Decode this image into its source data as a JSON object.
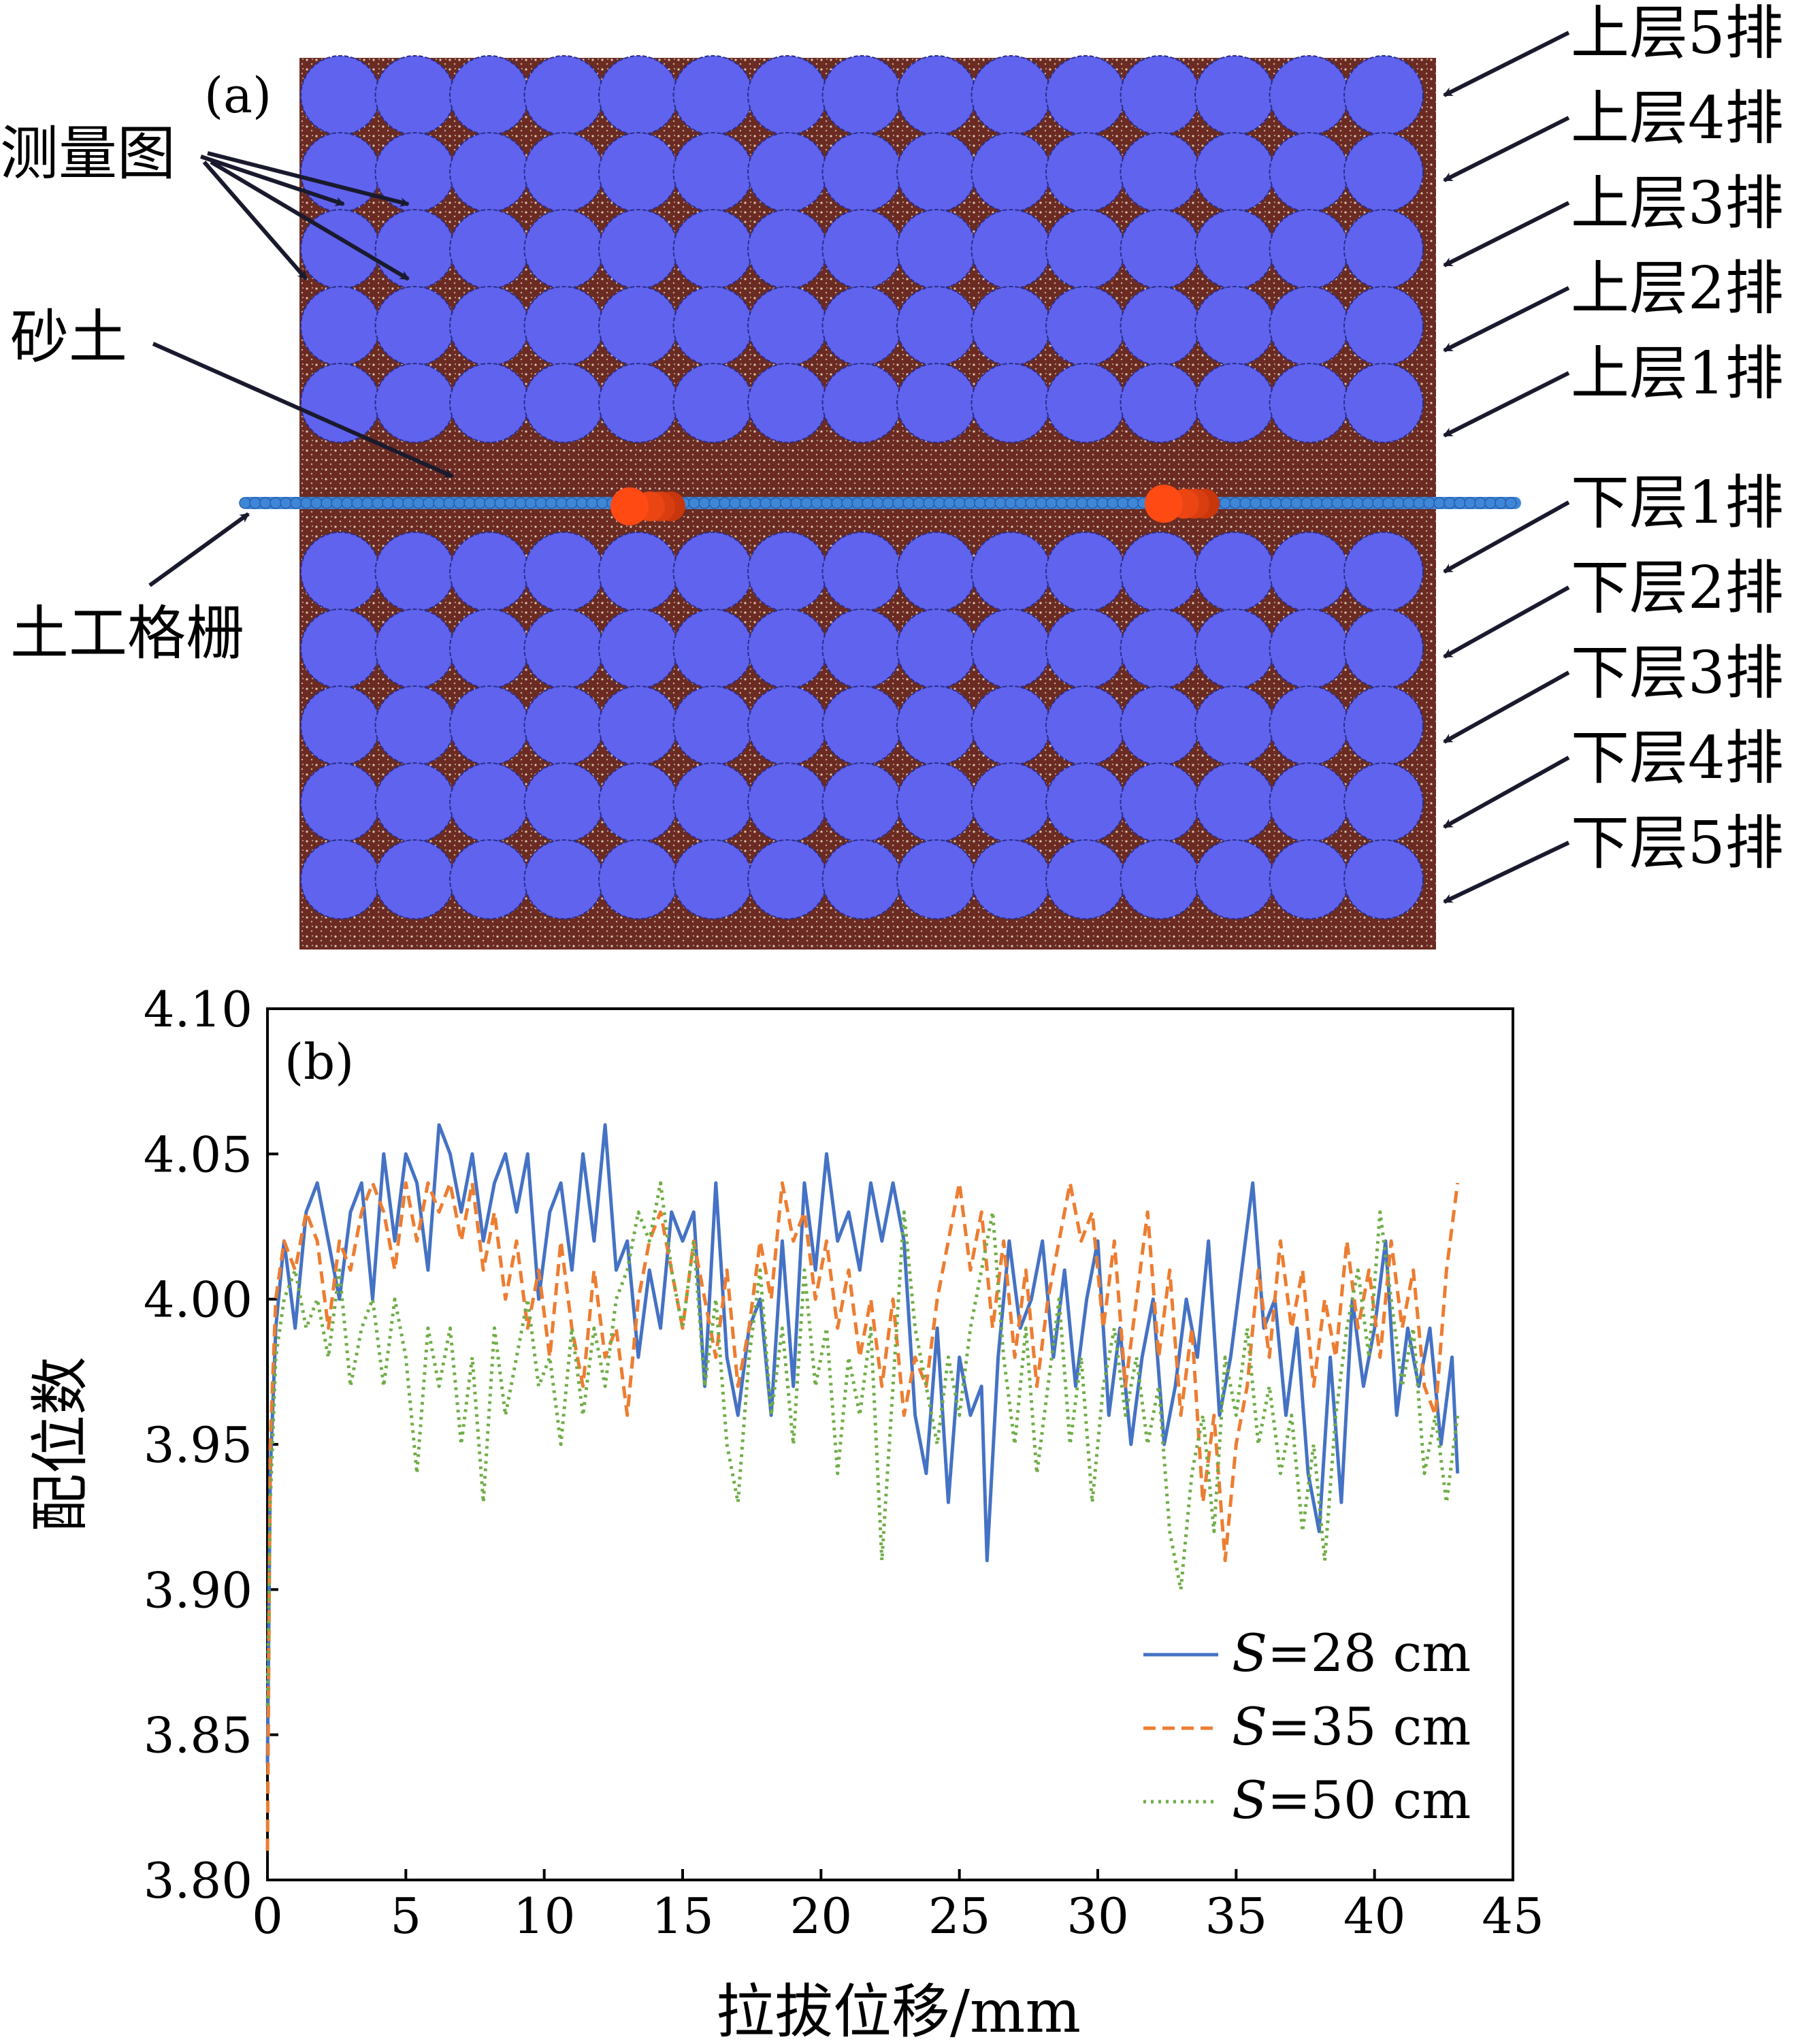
{
  "panel_a": {
    "tag": "(a)",
    "labels": {
      "measurement_circles": "测量图",
      "sand": "砂土",
      "geogrid": "土工格栅"
    },
    "rows_upper": [
      "上层5排",
      "上层4排",
      "上层3排",
      "上层2排",
      "上层1排"
    ],
    "rows_lower": [
      "下层1排",
      "下层2排",
      "下层3排",
      "下层4排",
      "下层5排"
    ],
    "colors": {
      "soil": "#6b2b22",
      "circle": "#5f63ee",
      "geogrid": "#3e86d8",
      "transverse_rib": "#ff4a14"
    }
  },
  "chart_data": {
    "type": "line",
    "tag": "(b)",
    "xlabel": "拉拔位移/mm",
    "ylabel": "配位数",
    "xlim": [
      0,
      45
    ],
    "ylim": [
      3.8,
      4.1
    ],
    "xticks": [
      "0",
      "5",
      "10",
      "15",
      "20",
      "25",
      "30",
      "35",
      "40",
      "45"
    ],
    "yticks": [
      "3.80",
      "3.85",
      "3.90",
      "3.95",
      "4.00",
      "4.05",
      "4.10"
    ],
    "grid": false,
    "legend_position": "bottom-right",
    "series": [
      {
        "name": "S=28 cm",
        "name_var": "S",
        "name_rest": "=28 cm",
        "color": "#4472c4",
        "style": "solid",
        "x": [
          0,
          0.1,
          0.3,
          0.6,
          1.0,
          1.4,
          1.8,
          2.2,
          2.6,
          3.0,
          3.4,
          3.8,
          4.2,
          4.6,
          5.0,
          5.4,
          5.8,
          6.2,
          6.6,
          7.0,
          7.4,
          7.8,
          8.2,
          8.6,
          9.0,
          9.4,
          9.8,
          10.2,
          10.6,
          11.0,
          11.4,
          11.8,
          12.2,
          12.6,
          13.0,
          13.4,
          13.8,
          14.2,
          14.6,
          15.0,
          15.4,
          15.8,
          16.2,
          16.6,
          17.0,
          17.4,
          17.8,
          18.2,
          18.6,
          19.0,
          19.4,
          19.8,
          20.2,
          20.6,
          21.0,
          21.4,
          21.8,
          22.2,
          22.6,
          23.0,
          23.4,
          23.8,
          24.2,
          24.6,
          25.0,
          25.4,
          25.8,
          26.0,
          26.4,
          26.8,
          27.2,
          27.6,
          28.0,
          28.4,
          28.8,
          29.2,
          29.6,
          30.0,
          30.4,
          30.8,
          31.2,
          31.6,
          32.0,
          32.4,
          32.8,
          33.2,
          33.6,
          34.0,
          34.4,
          34.8,
          35.2,
          35.6,
          36.0,
          36.4,
          36.8,
          37.2,
          37.6,
          38.0,
          38.4,
          38.8,
          39.2,
          39.6,
          40.0,
          40.4,
          40.8,
          41.2,
          41.6,
          42.0,
          42.4,
          42.8,
          43.0
        ],
        "y": [
          3.84,
          3.94,
          3.99,
          4.02,
          3.99,
          4.03,
          4.04,
          4.02,
          4.0,
          4.03,
          4.04,
          4.0,
          4.05,
          4.02,
          4.05,
          4.04,
          4.01,
          4.06,
          4.05,
          4.03,
          4.05,
          4.02,
          4.04,
          4.05,
          4.03,
          4.05,
          4.0,
          4.03,
          4.04,
          4.01,
          4.05,
          4.02,
          4.06,
          4.01,
          4.02,
          3.98,
          4.01,
          3.99,
          4.03,
          4.02,
          4.03,
          3.97,
          4.04,
          3.98,
          3.96,
          3.99,
          4.0,
          3.96,
          4.02,
          3.97,
          4.04,
          4.01,
          4.05,
          4.02,
          4.03,
          4.01,
          4.04,
          4.02,
          4.04,
          4.02,
          3.96,
          3.94,
          3.99,
          3.93,
          3.98,
          3.96,
          3.97,
          3.91,
          3.98,
          4.02,
          3.99,
          4.0,
          4.02,
          3.98,
          4.01,
          3.97,
          4.0,
          4.02,
          3.96,
          3.99,
          3.95,
          3.98,
          4.0,
          3.95,
          3.97,
          4.0,
          3.98,
          4.02,
          3.96,
          3.98,
          4.01,
          4.04,
          3.99,
          4.0,
          3.96,
          3.99,
          3.94,
          3.92,
          3.98,
          3.93,
          4.0,
          3.97,
          3.99,
          4.02,
          3.96,
          3.99,
          3.97,
          3.99,
          3.95,
          3.98,
          3.94
        ],
        "label_text": ""
      },
      {
        "name": "S=35 cm",
        "name_var": "S",
        "name_rest": "=35 cm",
        "color": "#ed7d31",
        "style": "dashed",
        "x": [
          0,
          0.1,
          0.3,
          0.6,
          1.0,
          1.4,
          1.8,
          2.2,
          2.6,
          3.0,
          3.4,
          3.8,
          4.2,
          4.6,
          5.0,
          5.4,
          5.8,
          6.2,
          6.6,
          7.0,
          7.4,
          7.8,
          8.2,
          8.6,
          9.0,
          9.4,
          9.8,
          10.2,
          10.6,
          11.0,
          11.4,
          11.8,
          12.2,
          12.6,
          13.0,
          13.4,
          13.8,
          14.2,
          14.6,
          15.0,
          15.4,
          15.8,
          16.2,
          16.6,
          17.0,
          17.4,
          17.8,
          18.2,
          18.6,
          19.0,
          19.4,
          19.8,
          20.2,
          20.6,
          21.0,
          21.4,
          21.8,
          22.2,
          22.6,
          23.0,
          23.4,
          23.8,
          24.2,
          24.6,
          25.0,
          25.4,
          25.8,
          26.2,
          26.6,
          27.0,
          27.4,
          27.8,
          28.2,
          28.6,
          29.0,
          29.4,
          29.8,
          30.2,
          30.6,
          31.0,
          31.4,
          31.8,
          32.2,
          32.6,
          33.0,
          33.4,
          33.8,
          34.2,
          34.6,
          35.0,
          35.4,
          35.8,
          36.2,
          36.6,
          37.0,
          37.4,
          37.8,
          38.2,
          38.6,
          39.0,
          39.4,
          39.8,
          40.2,
          40.6,
          41.0,
          41.4,
          41.8,
          42.2,
          42.6,
          43.0
        ],
        "y": [
          3.81,
          3.95,
          4.0,
          4.02,
          4.01,
          4.03,
          4.02,
          3.99,
          4.02,
          4.01,
          4.03,
          4.04,
          4.03,
          4.01,
          4.04,
          4.02,
          4.04,
          4.03,
          4.04,
          4.02,
          4.04,
          4.01,
          4.03,
          4.0,
          4.02,
          3.99,
          4.01,
          3.98,
          4.02,
          3.99,
          3.97,
          4.01,
          3.98,
          3.99,
          3.96,
          4.0,
          4.02,
          4.03,
          4.01,
          3.99,
          4.02,
          4.0,
          3.98,
          4.01,
          3.97,
          3.99,
          4.02,
          4.0,
          4.04,
          4.02,
          4.03,
          4.0,
          4.02,
          3.99,
          4.01,
          3.98,
          4.0,
          3.97,
          4.0,
          3.96,
          3.98,
          3.97,
          4.0,
          4.02,
          4.04,
          4.01,
          4.03,
          3.99,
          4.02,
          3.98,
          4.01,
          3.97,
          4.0,
          4.02,
          4.04,
          4.02,
          4.03,
          3.99,
          4.02,
          3.97,
          4.0,
          4.03,
          3.98,
          4.01,
          3.96,
          3.99,
          3.93,
          3.96,
          3.91,
          3.95,
          3.97,
          4.01,
          3.98,
          4.02,
          3.99,
          4.01,
          3.97,
          4.0,
          3.98,
          4.02,
          3.99,
          4.01,
          3.98,
          4.02,
          3.99,
          4.01,
          3.97,
          3.96,
          4.01,
          4.04
        ],
        "label_text": ""
      },
      {
        "name": "S=50 cm",
        "name_var": "S",
        "name_rest": "=50 cm",
        "color": "#70ad47",
        "style": "dotted",
        "x": [
          0,
          0.1,
          0.3,
          0.6,
          1.0,
          1.4,
          1.8,
          2.2,
          2.6,
          3.0,
          3.4,
          3.8,
          4.2,
          4.6,
          5.0,
          5.4,
          5.8,
          6.2,
          6.6,
          7.0,
          7.4,
          7.8,
          8.2,
          8.6,
          9.0,
          9.4,
          9.8,
          10.2,
          10.6,
          11.0,
          11.4,
          11.8,
          12.2,
          12.6,
          13.0,
          13.4,
          13.8,
          14.2,
          14.6,
          15.0,
          15.4,
          15.8,
          16.2,
          16.6,
          17.0,
          17.4,
          17.8,
          18.2,
          18.6,
          19.0,
          19.4,
          19.8,
          20.2,
          20.6,
          21.0,
          21.4,
          21.8,
          22.2,
          22.6,
          23.0,
          23.4,
          23.8,
          24.2,
          24.6,
          25.0,
          25.4,
          25.8,
          26.2,
          26.6,
          27.0,
          27.4,
          27.8,
          28.2,
          28.6,
          29.0,
          29.4,
          29.8,
          30.2,
          30.6,
          31.0,
          31.4,
          31.8,
          32.2,
          32.6,
          33.0,
          33.4,
          33.8,
          34.2,
          34.6,
          35.0,
          35.4,
          35.8,
          36.2,
          36.6,
          37.0,
          37.4,
          37.8,
          38.2,
          38.6,
          39.0,
          39.4,
          39.8,
          40.2,
          40.6,
          41.0,
          41.4,
          41.8,
          42.2,
          42.6,
          43.0
        ],
        "y": [
          3.86,
          3.93,
          3.98,
          4.0,
          4.01,
          3.99,
          4.0,
          3.98,
          4.01,
          3.97,
          3.99,
          4.0,
          3.97,
          4.0,
          3.98,
          3.94,
          3.99,
          3.97,
          3.99,
          3.95,
          3.98,
          3.93,
          3.99,
          3.96,
          3.98,
          4.0,
          3.97,
          3.98,
          3.95,
          3.99,
          3.96,
          3.99,
          3.97,
          4.0,
          4.01,
          4.03,
          4.02,
          4.04,
          4.01,
          3.99,
          4.02,
          3.97,
          4.0,
          3.95,
          3.93,
          3.98,
          4.01,
          3.96,
          3.99,
          3.95,
          4.01,
          3.97,
          3.99,
          3.94,
          3.98,
          3.96,
          3.99,
          3.91,
          3.97,
          4.03,
          3.99,
          3.97,
          3.95,
          3.98,
          3.96,
          3.99,
          4.01,
          4.03,
          3.98,
          3.95,
          3.99,
          3.94,
          3.97,
          4.0,
          3.95,
          3.98,
          3.93,
          3.97,
          3.99,
          3.96,
          3.98,
          3.95,
          3.97,
          3.92,
          3.9,
          3.94,
          3.96,
          3.92,
          3.98,
          3.96,
          3.99,
          3.95,
          3.97,
          3.94,
          3.96,
          3.92,
          3.95,
          3.91,
          3.96,
          3.99,
          4.01,
          3.98,
          4.03,
          4.0,
          3.97,
          3.99,
          3.94,
          3.96,
          3.93,
          3.96
        ],
        "label_text": ""
      }
    ]
  }
}
